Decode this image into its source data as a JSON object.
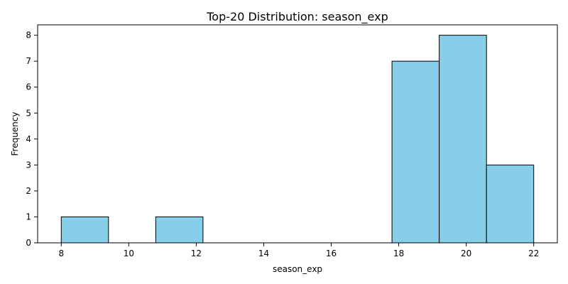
{
  "chart_data": {
    "type": "bar",
    "title": "Top-20 Distribution: season_exp",
    "xlabel": "season_exp",
    "ylabel": "Frequency",
    "xlim": [
      7.3,
      22.7
    ],
    "ylim": [
      0,
      8.4
    ],
    "x_ticks": [
      8,
      10,
      12,
      14,
      16,
      18,
      20,
      22
    ],
    "y_ticks": [
      0,
      1,
      2,
      3,
      4,
      5,
      6,
      7,
      8
    ],
    "bins": [
      {
        "start": 8.0,
        "end": 9.4,
        "count": 1
      },
      {
        "start": 9.4,
        "end": 10.8,
        "count": 0
      },
      {
        "start": 10.8,
        "end": 12.2,
        "count": 1
      },
      {
        "start": 12.2,
        "end": 13.6,
        "count": 0
      },
      {
        "start": 13.6,
        "end": 15.0,
        "count": 0
      },
      {
        "start": 15.0,
        "end": 16.4,
        "count": 0
      },
      {
        "start": 16.4,
        "end": 17.8,
        "count": 0
      },
      {
        "start": 17.8,
        "end": 19.2,
        "count": 7
      },
      {
        "start": 19.2,
        "end": 20.6,
        "count": 8
      },
      {
        "start": 20.6,
        "end": 22.0,
        "count": 3
      }
    ],
    "bar_color": "#87ceeb",
    "edge_color": "#000000",
    "grid": false,
    "legend": "none"
  }
}
